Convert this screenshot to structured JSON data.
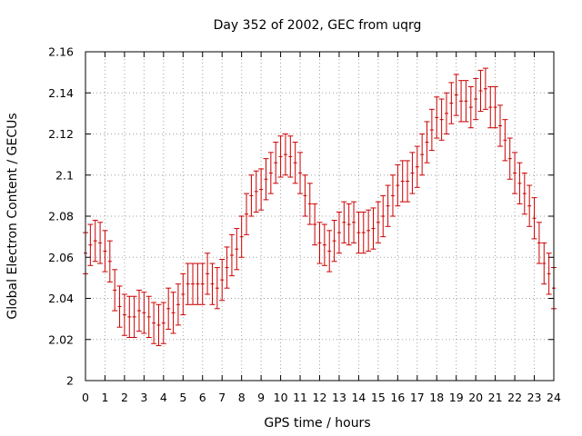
{
  "chart_data": {
    "type": "scatter",
    "subtype": "errorbar",
    "title": "Day 352 of 2002, GEC from uqrg",
    "xlabel": "GPS time / hours",
    "ylabel": "Global Electron Content / GECUs",
    "xlim": [
      0,
      24
    ],
    "ylim": [
      2.0,
      2.16
    ],
    "grid": true,
    "x_ticks": [
      0,
      1,
      2,
      3,
      4,
      5,
      6,
      7,
      8,
      9,
      10,
      11,
      12,
      13,
      14,
      15,
      16,
      17,
      18,
      19,
      20,
      21,
      22,
      23,
      24
    ],
    "x_tick_labels": [
      "0",
      "1",
      "2",
      "3",
      "4",
      "5",
      "6",
      "7",
      "8",
      "9",
      "10",
      "11",
      "12",
      "13",
      "14",
      "15",
      "16",
      "17",
      "18",
      "19",
      "20",
      "21",
      "22",
      "23",
      "24"
    ],
    "y_ticks": [
      2.0,
      2.02,
      2.04,
      2.06,
      2.08,
      2.1,
      2.12,
      2.14,
      2.16
    ],
    "y_tick_labels": [
      "2",
      "2.02",
      "2.04",
      "2.06",
      "2.08",
      "2.1",
      "2.12",
      "2.14",
      "2.16"
    ],
    "series": [
      {
        "name": "GEC",
        "color": "#cc0000",
        "error": 0.01,
        "x": [
          0.0,
          0.25,
          0.5,
          0.75,
          1.0,
          1.25,
          1.5,
          1.75,
          2.0,
          2.25,
          2.5,
          2.75,
          3.0,
          3.25,
          3.5,
          3.75,
          4.0,
          4.25,
          4.5,
          4.75,
          5.0,
          5.25,
          5.5,
          5.75,
          6.0,
          6.25,
          6.5,
          6.75,
          7.0,
          7.25,
          7.5,
          7.75,
          8.0,
          8.25,
          8.5,
          8.75,
          9.0,
          9.25,
          9.5,
          9.75,
          10.0,
          10.25,
          10.5,
          10.75,
          11.0,
          11.25,
          11.5,
          11.75,
          12.0,
          12.25,
          12.5,
          12.75,
          13.0,
          13.25,
          13.5,
          13.75,
          14.0,
          14.25,
          14.5,
          14.75,
          15.0,
          15.25,
          15.5,
          15.75,
          16.0,
          16.25,
          16.5,
          16.75,
          17.0,
          17.25,
          17.5,
          17.75,
          18.0,
          18.25,
          18.5,
          18.75,
          19.0,
          19.25,
          19.5,
          19.75,
          20.0,
          20.25,
          20.5,
          20.75,
          21.0,
          21.25,
          21.5,
          21.75,
          22.0,
          22.25,
          22.5,
          22.75,
          23.0,
          23.25,
          23.5,
          23.75,
          24.0
        ],
        "y": [
          2.062,
          2.066,
          2.068,
          2.067,
          2.063,
          2.058,
          2.044,
          2.036,
          2.032,
          2.031,
          2.031,
          2.034,
          2.033,
          2.031,
          2.028,
          2.027,
          2.028,
          2.035,
          2.033,
          2.037,
          2.042,
          2.047,
          2.047,
          2.047,
          2.047,
          2.052,
          2.047,
          2.045,
          2.049,
          2.055,
          2.061,
          2.064,
          2.07,
          2.081,
          2.09,
          2.092,
          2.093,
          2.098,
          2.101,
          2.106,
          2.109,
          2.11,
          2.109,
          2.106,
          2.101,
          2.09,
          2.086,
          2.076,
          2.067,
          2.066,
          2.063,
          2.068,
          2.072,
          2.077,
          2.076,
          2.077,
          2.072,
          2.072,
          2.073,
          2.074,
          2.077,
          2.08,
          2.085,
          2.09,
          2.095,
          2.097,
          2.097,
          2.101,
          2.104,
          2.11,
          2.116,
          2.122,
          2.128,
          2.127,
          2.13,
          2.135,
          2.139,
          2.136,
          2.136,
          2.133,
          2.137,
          2.141,
          2.142,
          2.133,
          2.133,
          2.124,
          2.117,
          2.108,
          2.101,
          2.096,
          2.091,
          2.085,
          2.079,
          2.067,
          2.057,
          2.052,
          2.045
        ]
      }
    ]
  }
}
